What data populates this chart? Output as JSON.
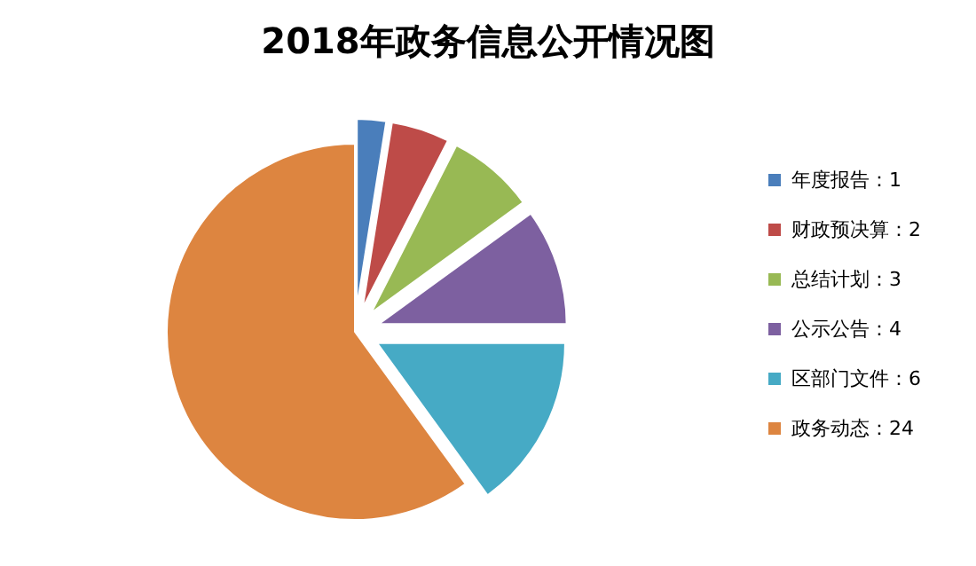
{
  "chart_data": {
    "type": "pie",
    "title": "2018年政务信息公开情况图",
    "categories": [
      "年度报告：1",
      "财政预决算：2",
      "总结计划：3",
      "公示公告：4",
      "区部门文件：6",
      "政务动态：24"
    ],
    "values": [
      1,
      2,
      3,
      4,
      6,
      24
    ],
    "colors": [
      "#4a7ebb",
      "#be4b48",
      "#98b954",
      "#7d60a0",
      "#46aac5",
      "#dd8540"
    ],
    "legend": "right"
  }
}
